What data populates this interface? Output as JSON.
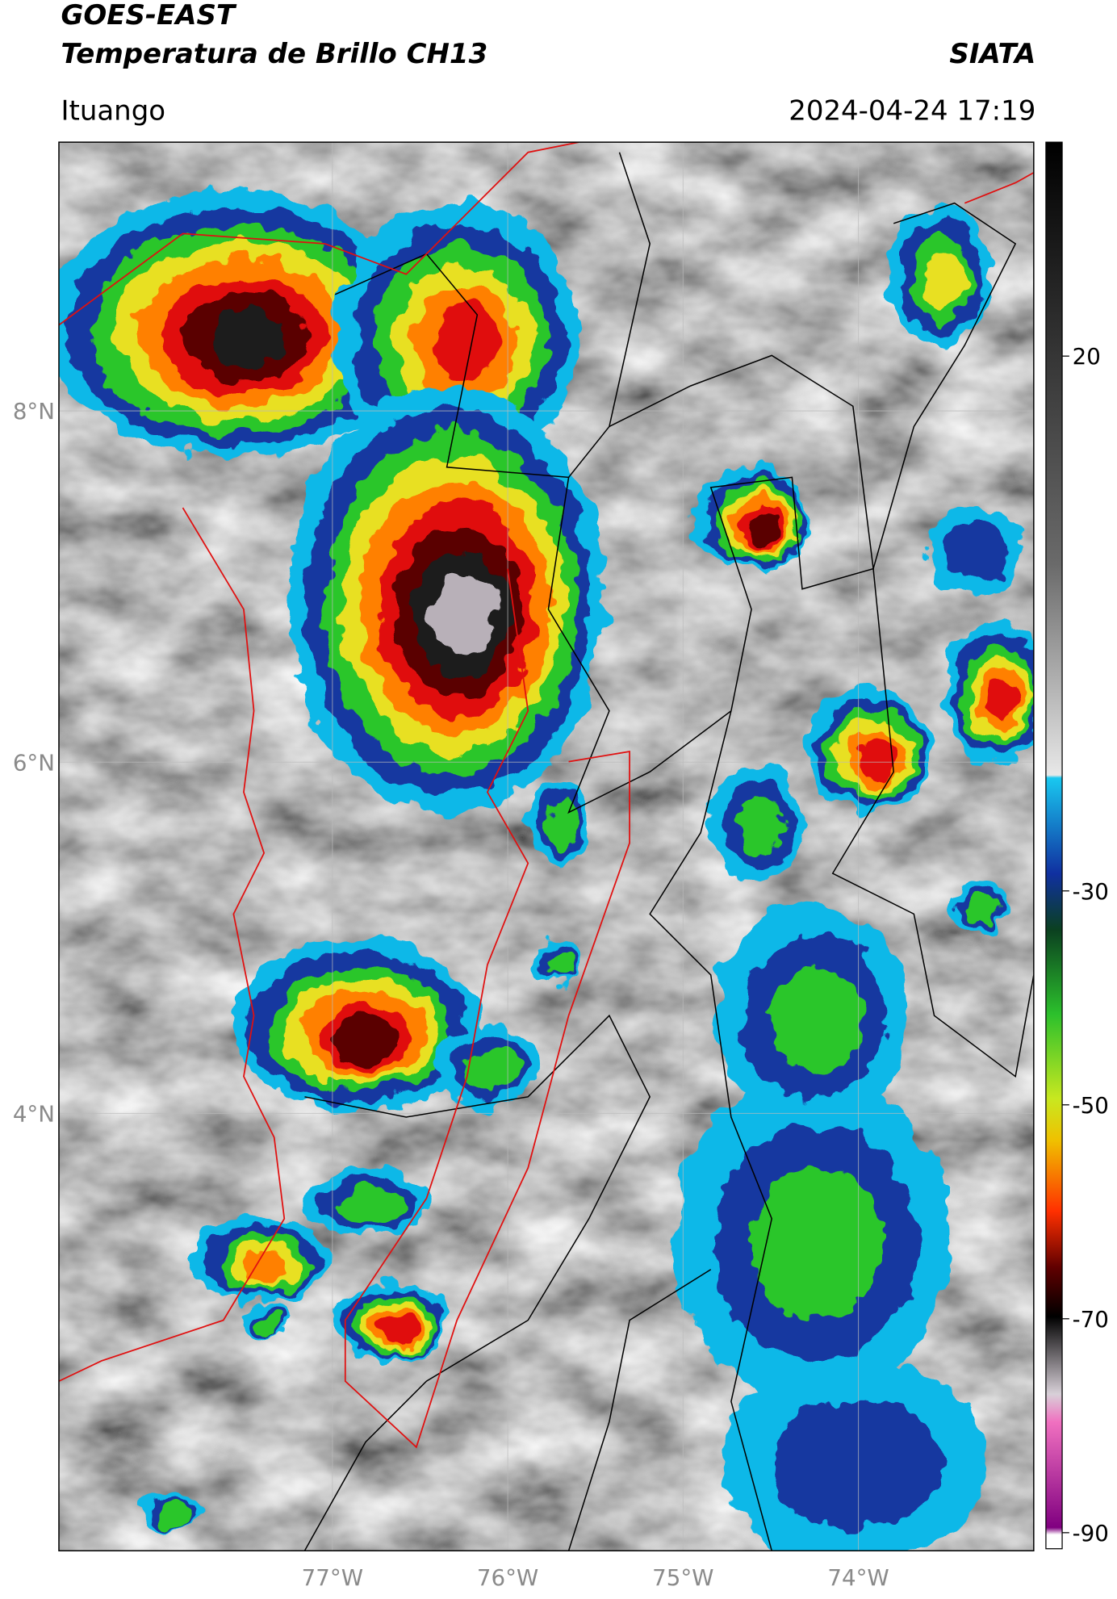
{
  "header": {
    "title": "GOES-EAST",
    "subtitle": "Temperatura de Brillo CH13",
    "source": "SIATA",
    "location": "Ituango",
    "datetime": "2024-04-24 17:19"
  },
  "map": {
    "xlim": [
      -78.56,
      -73.0
    ],
    "ylim": [
      1.51,
      9.53
    ],
    "xticks": [
      {
        "value": -77,
        "label": "77°W"
      },
      {
        "value": -76,
        "label": "76°W"
      },
      {
        "value": -75,
        "label": "75°W"
      },
      {
        "value": -74,
        "label": "74°W"
      }
    ],
    "yticks": [
      {
        "value": 8,
        "label": "8°N"
      },
      {
        "value": 6,
        "label": "6°N"
      },
      {
        "value": 4,
        "label": "4°N"
      }
    ],
    "grid": true
  },
  "colorbar": {
    "lim": [
      -91.5,
      40
    ],
    "ticks": [
      20,
      -30,
      -50,
      -70,
      -90
    ]
  }
}
